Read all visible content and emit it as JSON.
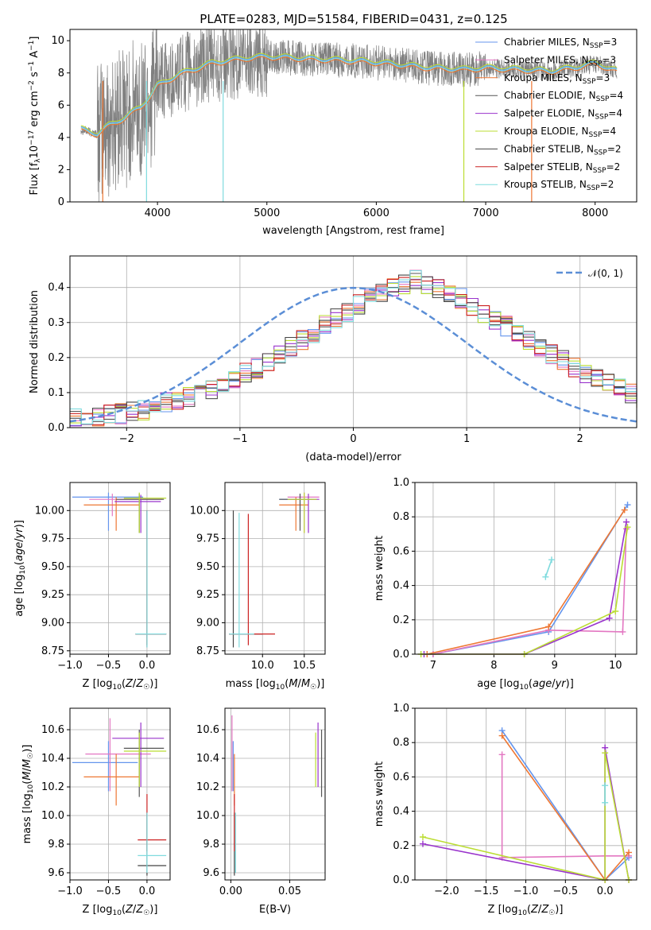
{
  "title": "PLATE=0283, MJD=51584, FIBERID=0431, z=0.125",
  "colors": {
    "chabrier_miles": "#6495ed",
    "salpeter_miles": "#e377c2",
    "kroupa_miles": "#ee7733",
    "chabrier_elodie": "#555555",
    "salpeter_elodie": "#9933cc",
    "kroupa_elodie": "#bbdd33",
    "chabrier_stelib": "#444444",
    "salpeter_stelib": "#cc2222",
    "kroupa_stelib": "#7fdbde",
    "spectrum": "#808080",
    "normal_curve": "#5b8ed6"
  },
  "legend_spectrum": [
    {
      "main": "Chabrier MILES, N",
      "sub": "SSP",
      "tail": "=3",
      "color": "#6495ed"
    },
    {
      "main": "Salpeter MILES, N",
      "sub": "SSP",
      "tail": "=3",
      "color": "#e377c2"
    },
    {
      "main": "Kroupa MILES, N",
      "sub": "SSP",
      "tail": "=3",
      "color": "#ee7733"
    },
    {
      "main": "Chabrier ELODIE, N",
      "sub": "SSP",
      "tail": "=4",
      "color": "#555555"
    },
    {
      "main": "Salpeter ELODIE, N",
      "sub": "SSP",
      "tail": "=4",
      "color": "#9933cc"
    },
    {
      "main": "Kroupa ELODIE, N",
      "sub": "SSP",
      "tail": "=4",
      "color": "#bbdd33"
    },
    {
      "main": "Chabrier STELIB, N",
      "sub": "SSP",
      "tail": "=2",
      "color": "#444444"
    },
    {
      "main": "Salpeter STELIB, N",
      "sub": "SSP",
      "tail": "=2",
      "color": "#cc2222"
    },
    {
      "main": "Kroupa STELIB, N",
      "sub": "SSP",
      "tail": "=2",
      "color": "#7fdbde"
    }
  ],
  "axis_labels": {
    "spec_x": "wavelength [Angstrom, rest frame]",
    "spec_y": "Flux [f",
    "hist_x": "(data-model)/error",
    "hist_y": "Normed distribution",
    "hist_legend": "𝒩(0, 1)",
    "age_y": "age  [log",
    "z_x": "Z [log",
    "mass_x": "mass [log",
    "mass_y": "mass [log",
    "ebv_x": "E(B-V)",
    "mw_y": "mass weight",
    "age_x": "age  [log"
  },
  "chart_data": [
    {
      "type": "line",
      "title": "PLATE=0283, MJD=51584, FIBERID=0431, z=0.125",
      "xlabel": "wavelength [Angstrom, rest frame]",
      "ylabel": "Flux [fλ 10^-17 erg cm^-2 s^-1 A^-1]",
      "xlim": [
        3200,
        8380
      ],
      "ylim": [
        0,
        10.7
      ],
      "xticks": [
        4000,
        5000,
        6000,
        7000,
        8000
      ],
      "yticks": [
        0,
        2,
        4,
        6,
        8,
        10
      ],
      "model_continuum": [
        [
          3300,
          4.5
        ],
        [
          3450,
          4.2
        ],
        [
          3550,
          4.7
        ],
        [
          3700,
          5.2
        ],
        [
          3850,
          5.9
        ],
        [
          3950,
          6.7
        ],
        [
          4000,
          7.2
        ],
        [
          4200,
          7.9
        ],
        [
          4500,
          8.6
        ],
        [
          4800,
          8.9
        ],
        [
          5000,
          9.0
        ],
        [
          5300,
          8.9
        ],
        [
          5600,
          8.8
        ],
        [
          5900,
          8.7
        ],
        [
          6200,
          8.5
        ],
        [
          6500,
          8.3
        ],
        [
          6800,
          8.2
        ],
        [
          7000,
          8.3
        ],
        [
          7300,
          8.2
        ],
        [
          7600,
          8.1
        ],
        [
          7800,
          8.3
        ],
        [
          8000,
          8.6
        ],
        [
          8200,
          8.1
        ]
      ],
      "legend_location": "upper right"
    },
    {
      "type": "bar",
      "title": "",
      "xlabel": "(data-model)/error",
      "ylabel": "Normed distribution",
      "xlim": [
        -2.5,
        2.5
      ],
      "ylim": [
        0,
        0.49
      ],
      "xticks": [
        -2,
        -1,
        0,
        1,
        2
      ],
      "yticks": [
        0.0,
        0.1,
        0.2,
        0.3,
        0.4
      ],
      "bin_width": 0.1,
      "bins_start": -2.5,
      "hist_base": [
        0.025,
        0.026,
        0.028,
        0.035,
        0.04,
        0.045,
        0.052,
        0.06,
        0.07,
        0.08,
        0.09,
        0.1,
        0.112,
        0.125,
        0.14,
        0.155,
        0.17,
        0.19,
        0.21,
        0.23,
        0.25,
        0.27,
        0.29,
        0.31,
        0.33,
        0.35,
        0.37,
        0.385,
        0.4,
        0.41,
        0.42,
        0.41,
        0.4,
        0.385,
        0.37,
        0.35,
        0.33,
        0.31,
        0.29,
        0.27,
        0.25,
        0.23,
        0.21,
        0.19,
        0.17,
        0.155,
        0.14,
        0.125,
        0.11,
        0.095,
        0.085,
        0.075,
        0.065,
        0.055,
        0.05,
        0.045,
        0.04,
        0.035,
        0.03,
        0.025,
        0.022,
        0.02
      ],
      "normal_curve": "N(0,1)",
      "grid": true,
      "legend_location": "upper right"
    },
    {
      "type": "scatter",
      "name": "age vs Z",
      "xlabel": "Z [log10(Z/Z☉)]",
      "ylabel": "age [log10(age/yr)]",
      "xlim": [
        -1.0,
        0.3
      ],
      "ylim": [
        8.72,
        10.25
      ],
      "xticks": [
        -1.0,
        -0.5,
        0.0
      ],
      "yticks": [
        8.75,
        9.0,
        9.25,
        9.5,
        9.75,
        10.0
      ],
      "points": [
        {
          "s": "chabrier_miles",
          "x": -0.5,
          "y": 10.12,
          "xl": -0.97,
          "xh": -0.05,
          "yl": 9.82,
          "yh": 10.16
        },
        {
          "s": "salpeter_miles",
          "x": -0.45,
          "y": 10.1,
          "xl": -0.75,
          "xh": 0.2,
          "yl": 9.95,
          "yh": 10.15
        },
        {
          "s": "kroupa_miles",
          "x": -0.4,
          "y": 10.05,
          "xl": -0.82,
          "xh": -0.1,
          "yl": 9.82,
          "yh": 10.12
        },
        {
          "s": "chabrier_elodie",
          "x": -0.1,
          "y": 10.1,
          "xl": -0.4,
          "xh": 0.22,
          "yl": 9.8,
          "yh": 10.15
        },
        {
          "s": "salpeter_elodie",
          "x": -0.08,
          "y": 10.08,
          "xl": -0.42,
          "xh": 0.18,
          "yl": 9.8,
          "yh": 10.14
        },
        {
          "s": "kroupa_elodie",
          "x": -0.1,
          "y": 10.11,
          "xl": -0.3,
          "xh": 0.25,
          "yl": 9.8,
          "yh": 10.16
        },
        {
          "s": "chabrier_stelib",
          "x": 0.0,
          "y": 8.9,
          "xl": -0.15,
          "xh": 0.25,
          "yl": 8.78,
          "yh": 10.0
        },
        {
          "s": "salpeter_stelib",
          "x": 0.0,
          "y": 8.9,
          "xl": -0.15,
          "xh": 0.25,
          "yl": 8.8,
          "yh": 10.0
        },
        {
          "s": "kroupa_stelib",
          "x": 0.0,
          "y": 8.9,
          "xl": -0.15,
          "xh": 0.25,
          "yl": 8.78,
          "yh": 10.0
        }
      ]
    },
    {
      "type": "scatter",
      "name": "age vs mass",
      "xlabel": "mass [log10(M/M☉)]",
      "ylabel": "",
      "xlim": [
        9.55,
        10.75
      ],
      "ylim": [
        8.72,
        10.25
      ],
      "xticks": [
        10.0,
        10.5
      ],
      "yticks": [
        8.75,
        9.0,
        9.25,
        9.5,
        9.75,
        10.0
      ],
      "points": [
        {
          "s": "chabrier_miles",
          "x": 10.45,
          "y": 10.1,
          "xl": 10.2,
          "xh": 10.6,
          "yl": 9.9,
          "yh": 10.15
        },
        {
          "s": "salpeter_miles",
          "x": 10.5,
          "y": 10.12,
          "xl": 10.3,
          "xh": 10.68,
          "yl": 9.8,
          "yh": 10.16
        },
        {
          "s": "kroupa_miles",
          "x": 10.4,
          "y": 10.05,
          "xl": 10.2,
          "xh": 10.55,
          "yl": 9.82,
          "yh": 10.12
        },
        {
          "s": "chabrier_elodie",
          "x": 10.45,
          "y": 10.1,
          "xl": 10.2,
          "xh": 10.65,
          "yl": 9.82,
          "yh": 10.15
        },
        {
          "s": "salpeter_elodie",
          "x": 10.55,
          "y": 10.1,
          "xl": 10.3,
          "xh": 10.68,
          "yl": 9.8,
          "yh": 10.15
        },
        {
          "s": "kroupa_elodie",
          "x": 10.5,
          "y": 10.1,
          "xl": 10.3,
          "xh": 10.65,
          "yl": 9.8,
          "yh": 10.16
        },
        {
          "s": "chabrier_stelib",
          "x": 9.65,
          "y": 8.9,
          "xl": 9.6,
          "xh": 10.0,
          "yl": 8.78,
          "yh": 10.0
        },
        {
          "s": "salpeter_stelib",
          "x": 9.83,
          "y": 8.9,
          "xl": 9.6,
          "xh": 10.15,
          "yl": 8.8,
          "yh": 9.97
        },
        {
          "s": "kroupa_stelib",
          "x": 9.72,
          "y": 8.9,
          "xl": 9.6,
          "xh": 9.9,
          "yl": 8.78,
          "yh": 9.98
        }
      ]
    },
    {
      "type": "line",
      "name": "mass weight vs age",
      "xlabel": "age [log10(age/yr)]",
      "ylabel": "mass weight",
      "xlim": [
        6.7,
        10.35
      ],
      "ylim": [
        0,
        1.0
      ],
      "xticks": [
        7,
        8,
        9,
        10
      ],
      "yticks": [
        0.0,
        0.2,
        0.4,
        0.6,
        0.8,
        1.0
      ],
      "series": [
        {
          "s": "chabrier_miles",
          "x": [
            7.0,
            8.9,
            10.2
          ],
          "y": [
            0.0,
            0.13,
            0.87
          ]
        },
        {
          "s": "salpeter_miles",
          "x": [
            7.0,
            8.9,
            10.12,
            10.18
          ],
          "y": [
            0.0,
            0.14,
            0.13,
            0.73
          ]
        },
        {
          "s": "kroupa_miles",
          "x": [
            6.9,
            8.9,
            10.15
          ],
          "y": [
            0.0,
            0.16,
            0.84
          ]
        },
        {
          "s": "salpeter_elodie",
          "x": [
            6.85,
            8.5,
            9.9,
            10.18
          ],
          "y": [
            0.0,
            0.0,
            0.21,
            0.77
          ]
        },
        {
          "s": "kroupa_elodie",
          "x": [
            6.8,
            8.5,
            10.0,
            10.2
          ],
          "y": [
            0.0,
            0.0,
            0.25,
            0.74
          ]
        },
        {
          "s": "kroupa_stelib",
          "x": [
            8.85,
            8.95
          ],
          "y": [
            0.45,
            0.55
          ]
        }
      ]
    },
    {
      "type": "scatter",
      "name": "mass vs Z",
      "xlabel": "Z [log10(Z/Z☉)]",
      "ylabel": "mass [log10(M/M☉)]",
      "xlim": [
        -1.0,
        0.3
      ],
      "ylim": [
        9.55,
        10.75
      ],
      "xticks": [
        -1.0,
        -0.5,
        0.0
      ],
      "yticks": [
        9.6,
        9.8,
        10.0,
        10.2,
        10.4,
        10.6
      ],
      "points": [
        {
          "s": "chabrier_miles",
          "x": -0.5,
          "y": 10.37,
          "xl": -0.97,
          "xh": -0.12,
          "yl": 10.17,
          "yh": 10.52
        },
        {
          "s": "salpeter_miles",
          "x": -0.48,
          "y": 10.43,
          "xl": -0.8,
          "xh": 0.05,
          "yl": 10.17,
          "yh": 10.68
        },
        {
          "s": "kroupa_miles",
          "x": -0.4,
          "y": 10.27,
          "xl": -0.82,
          "xh": -0.1,
          "yl": 10.07,
          "yh": 10.43
        },
        {
          "s": "chabrier_elodie",
          "x": -0.1,
          "y": 10.47,
          "xl": -0.3,
          "xh": 0.22,
          "yl": 10.13,
          "yh": 10.6
        },
        {
          "s": "salpeter_elodie",
          "x": -0.08,
          "y": 10.54,
          "xl": -0.45,
          "xh": 0.22,
          "yl": 10.2,
          "yh": 10.65
        },
        {
          "s": "kroupa_elodie",
          "x": -0.1,
          "y": 10.45,
          "xl": -0.3,
          "xh": 0.25,
          "yl": 10.2,
          "yh": 10.58
        },
        {
          "s": "chabrier_stelib",
          "x": 0.0,
          "y": 9.65,
          "xl": -0.12,
          "xh": 0.25,
          "yl": 9.58,
          "yh": 10.02
        },
        {
          "s": "salpeter_stelib",
          "x": 0.0,
          "y": 9.83,
          "xl": -0.12,
          "xh": 0.25,
          "yl": 9.75,
          "yh": 10.15
        },
        {
          "s": "kroupa_stelib",
          "x": 0.0,
          "y": 9.72,
          "xl": -0.12,
          "xh": 0.25,
          "yl": 9.6,
          "yh": 10.02
        }
      ]
    },
    {
      "type": "scatter",
      "name": "mass vs E(B-V)",
      "xlabel": "E(B-V)",
      "ylabel": "",
      "xlim": [
        -0.005,
        0.08
      ],
      "ylim": [
        9.55,
        10.75
      ],
      "xticks": [
        0.0,
        0.05
      ],
      "yticks": [
        9.6,
        9.8,
        10.0,
        10.2,
        10.4,
        10.6
      ],
      "points": [
        {
          "s": "chabrier_miles",
          "x": 0.002,
          "y": 10.37,
          "yl": 10.17,
          "yh": 10.52
        },
        {
          "s": "salpeter_miles",
          "x": 0.001,
          "y": 10.43,
          "yl": 10.17,
          "yh": 10.7
        },
        {
          "s": "kroupa_miles",
          "x": 0.003,
          "y": 10.27,
          "yl": 10.07,
          "yh": 10.43
        },
        {
          "s": "chabrier_elodie",
          "x": 0.077,
          "y": 10.47,
          "yl": 10.13,
          "yh": 10.6
        },
        {
          "s": "salpeter_elodie",
          "x": 0.074,
          "y": 10.54,
          "yl": 10.2,
          "yh": 10.65
        },
        {
          "s": "kroupa_elodie",
          "x": 0.072,
          "y": 10.45,
          "yl": 10.2,
          "yh": 10.58
        },
        {
          "s": "chabrier_stelib",
          "x": 0.003,
          "y": 9.65,
          "yl": 9.58,
          "yh": 10.02
        },
        {
          "s": "salpeter_stelib",
          "x": 0.003,
          "y": 9.83,
          "yl": 9.75,
          "yh": 10.15
        },
        {
          "s": "kroupa_stelib",
          "x": 0.004,
          "y": 9.72,
          "yl": 9.6,
          "yh": 10.02
        }
      ]
    },
    {
      "type": "line",
      "name": "mass weight vs Z",
      "xlabel": "Z [log10(Z/Z☉)]",
      "ylabel": "mass weight",
      "xlim": [
        -2.4,
        0.4
      ],
      "ylim": [
        0,
        1.0
      ],
      "xticks": [
        -2.0,
        -1.5,
        -1.0,
        -0.5,
        0.0
      ],
      "yticks": [
        0.0,
        0.2,
        0.4,
        0.6,
        0.8,
        1.0
      ],
      "series": [
        {
          "s": "chabrier_miles",
          "x": [
            -1.3,
            0.0,
            0.3
          ],
          "y": [
            0.87,
            0.0,
            0.13
          ]
        },
        {
          "s": "salpeter_miles",
          "x": [
            -1.3,
            -1.3,
            0.0,
            0.3
          ],
          "y": [
            0.73,
            0.13,
            0.14,
            0.14
          ]
        },
        {
          "s": "kroupa_miles",
          "x": [
            -1.3,
            0.0,
            0.3
          ],
          "y": [
            0.84,
            0.0,
            0.16
          ]
        },
        {
          "s": "salpeter_elodie",
          "x": [
            -2.3,
            0.0,
            0.0,
            0.3
          ],
          "y": [
            0.21,
            0.0,
            0.77,
            0.0
          ]
        },
        {
          "s": "kroupa_elodie",
          "x": [
            -2.3,
            0.0,
            0.0,
            0.3
          ],
          "y": [
            0.25,
            0.0,
            0.74,
            0.0
          ]
        },
        {
          "s": "kroupa_stelib",
          "x": [
            0.0,
            0.0
          ],
          "y": [
            0.45,
            0.55
          ]
        }
      ]
    }
  ]
}
